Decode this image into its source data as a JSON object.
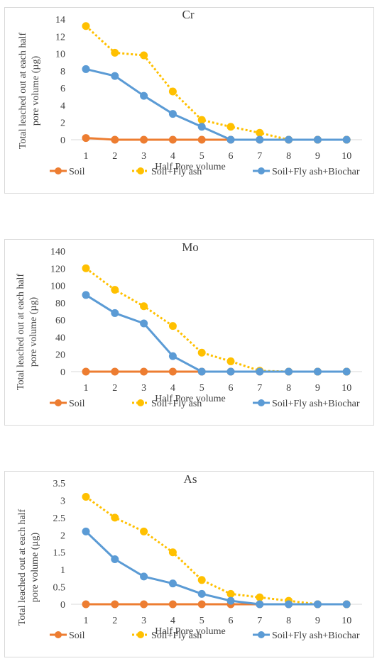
{
  "chart_data": [
    {
      "type": "line",
      "title": "Cr",
      "xlabel": "Half Pore volume",
      "ylabel": "Total leached out at each half pore volume  (µg)",
      "categories": [
        "1",
        "2",
        "3",
        "4",
        "5",
        "6",
        "7",
        "8",
        "9",
        "10"
      ],
      "ylim": [
        0,
        14
      ],
      "yticks": [
        "0",
        "2",
        "4",
        "6",
        "8",
        "10",
        "12",
        "14"
      ],
      "legend_position": "bottom",
      "series": [
        {
          "name": "Soil",
          "color": "#ED7D31",
          "style": "solid",
          "values": [
            0.2,
            0,
            0,
            0,
            0,
            0,
            0,
            0,
            0,
            0
          ]
        },
        {
          "name": "Soil+Fly ash",
          "color": "#FFC000",
          "style": "dotted",
          "values": [
            13.2,
            10.1,
            9.8,
            5.6,
            2.3,
            1.5,
            0.8,
            0,
            0,
            0
          ]
        },
        {
          "name": "Soil+Fly ash+Biochar",
          "color": "#5B9BD5",
          "style": "solid",
          "values": [
            8.2,
            7.4,
            5.1,
            3.0,
            1.5,
            0,
            0,
            0,
            0,
            0
          ]
        }
      ]
    },
    {
      "type": "line",
      "title": "Mo",
      "xlabel": "Half Pore volume",
      "ylabel": "Total leached out at each half pore volume  (µg)",
      "categories": [
        "1",
        "2",
        "3",
        "4",
        "5",
        "6",
        "7",
        "8",
        "9",
        "10"
      ],
      "ylim": [
        0,
        140
      ],
      "yticks": [
        "0",
        "20",
        "40",
        "60",
        "80",
        "100",
        "120",
        "140"
      ],
      "legend_position": "bottom",
      "series": [
        {
          "name": "Soil",
          "color": "#ED7D31",
          "style": "solid",
          "values": [
            0,
            0,
            0,
            0,
            0,
            0,
            0,
            0,
            0,
            0
          ]
        },
        {
          "name": "Soil+Fly ash",
          "color": "#FFC000",
          "style": "dotted",
          "values": [
            120,
            95,
            76,
            53,
            22,
            12,
            1,
            0,
            0,
            0
          ]
        },
        {
          "name": "Soil+Fly ash+Biochar",
          "color": "#5B9BD5",
          "style": "solid",
          "values": [
            89,
            68,
            56,
            18,
            0,
            0,
            0,
            0,
            0,
            0
          ]
        }
      ]
    },
    {
      "type": "line",
      "title": "As",
      "xlabel": "Half Pore volume",
      "ylabel": "Total leached out at each half pore volume  (µg)",
      "categories": [
        "1",
        "2",
        "3",
        "4",
        "5",
        "6",
        "7",
        "8",
        "9",
        "10"
      ],
      "ylim": [
        0,
        3.5
      ],
      "yticks": [
        "0",
        "0.5",
        "1",
        "1.5",
        "2",
        "2.5",
        "3",
        "3.5"
      ],
      "legend_position": "bottom",
      "series": [
        {
          "name": "Soil",
          "color": "#ED7D31",
          "style": "solid",
          "values": [
            0,
            0,
            0,
            0,
            0,
            0,
            0,
            0,
            0,
            0
          ]
        },
        {
          "name": "Soil+Fly ash",
          "color": "#FFC000",
          "style": "dotted",
          "values": [
            3.1,
            2.5,
            2.1,
            1.5,
            0.7,
            0.3,
            0.2,
            0.1,
            0,
            0
          ]
        },
        {
          "name": "Soil+Fly ash+Biochar",
          "color": "#5B9BD5",
          "style": "solid",
          "values": [
            2.1,
            1.3,
            0.8,
            0.6,
            0.3,
            0.1,
            0,
            0,
            0,
            0
          ]
        }
      ]
    }
  ]
}
